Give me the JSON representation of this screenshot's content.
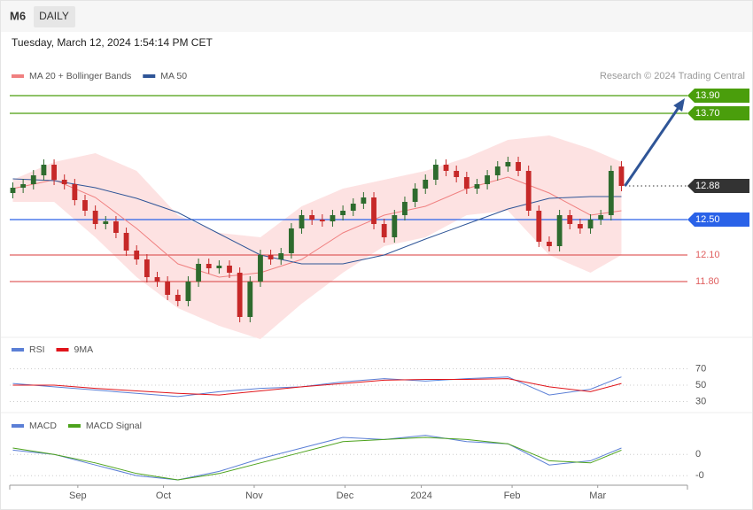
{
  "header": {
    "symbol": "M6",
    "interval": "DAILY",
    "timestamp": "Tuesday, March 12, 2024 1:54:14 PM CET"
  },
  "chart_data": [
    {
      "type": "candlestick",
      "credit": "Research © 2024 Trading Central",
      "up_color": "#2e6b2e",
      "down_color": "#c62828",
      "band_color": "#fde2e2",
      "xlim": [
        -0.3,
        65.4
      ],
      "xticks": [
        {
          "value": 6.3,
          "label": "Sep"
        },
        {
          "value": 14.6,
          "label": "Oct"
        },
        {
          "value": 23.4,
          "label": "Nov"
        },
        {
          "value": 32.2,
          "label": "Dec"
        },
        {
          "value": 39.6,
          "label": "2024"
        },
        {
          "value": 48.4,
          "label": "Feb"
        },
        {
          "value": 56.7,
          "label": "Mar"
        }
      ],
      "ylim": [
        11.18,
        14.58
      ],
      "open": [
        12.8,
        12.86,
        12.9,
        13.0,
        13.12,
        12.95,
        12.9,
        12.72,
        12.6,
        12.45,
        12.48,
        12.35,
        12.15,
        12.05,
        11.85,
        11.8,
        11.65,
        11.58,
        11.8,
        12.0,
        11.95,
        11.98,
        11.9,
        11.4,
        11.8,
        12.1,
        12.05,
        12.12,
        12.4,
        12.55,
        12.5,
        12.48,
        12.55,
        12.6,
        12.68,
        12.75,
        12.45,
        12.3,
        12.55,
        12.7,
        12.85,
        12.95,
        13.12,
        13.05,
        12.98,
        12.85,
        12.9,
        13.0,
        13.1,
        13.15,
        13.05,
        12.6,
        12.25,
        12.2,
        12.55,
        12.45,
        12.4,
        12.5,
        12.55,
        13.1
      ],
      "high": [
        12.92,
        12.96,
        13.06,
        13.18,
        13.18,
        13.01,
        12.96,
        12.78,
        12.66,
        12.54,
        12.54,
        12.41,
        12.21,
        12.11,
        11.91,
        11.86,
        11.71,
        11.86,
        12.06,
        12.06,
        12.04,
        12.04,
        11.96,
        11.86,
        12.16,
        12.16,
        12.18,
        12.46,
        12.61,
        12.61,
        12.56,
        12.61,
        12.66,
        12.74,
        12.81,
        12.81,
        12.51,
        12.61,
        12.76,
        12.91,
        13.01,
        13.18,
        13.18,
        13.11,
        13.04,
        12.96,
        13.06,
        13.16,
        13.21,
        13.21,
        13.11,
        12.66,
        12.31,
        12.61,
        12.61,
        12.51,
        12.56,
        12.61,
        13.11,
        13.16
      ],
      "low": [
        12.74,
        12.8,
        12.84,
        12.94,
        12.89,
        12.84,
        12.66,
        12.54,
        12.39,
        12.39,
        12.29,
        12.09,
        11.99,
        11.79,
        11.74,
        11.59,
        11.52,
        11.52,
        11.74,
        11.89,
        11.89,
        11.84,
        11.34,
        11.34,
        11.74,
        11.99,
        11.99,
        12.06,
        12.34,
        12.44,
        12.42,
        12.42,
        12.49,
        12.54,
        12.62,
        12.39,
        12.24,
        12.24,
        12.49,
        12.64,
        12.79,
        12.89,
        12.99,
        12.92,
        12.79,
        12.79,
        12.84,
        12.94,
        13.04,
        12.99,
        12.54,
        12.19,
        12.14,
        12.14,
        12.39,
        12.34,
        12.34,
        12.44,
        12.49,
        12.82
      ],
      "close": [
        12.86,
        12.9,
        13.0,
        13.12,
        12.95,
        12.9,
        12.72,
        12.6,
        12.45,
        12.48,
        12.35,
        12.15,
        12.05,
        11.85,
        11.8,
        11.65,
        11.58,
        11.8,
        12.0,
        11.95,
        11.98,
        11.9,
        11.4,
        11.8,
        12.1,
        12.05,
        12.12,
        12.4,
        12.55,
        12.5,
        12.48,
        12.55,
        12.6,
        12.68,
        12.75,
        12.45,
        12.3,
        12.55,
        12.7,
        12.85,
        12.95,
        13.12,
        13.05,
        12.98,
        12.85,
        12.9,
        13.0,
        13.1,
        13.15,
        13.05,
        12.6,
        12.25,
        12.2,
        12.55,
        12.45,
        12.4,
        12.5,
        12.55,
        13.05,
        12.88
      ],
      "series": [
        {
          "name": "MA 20 + Bollinger Bands",
          "color": "#f08080",
          "x": [
            0,
            4,
            8,
            12,
            16,
            20,
            24,
            28,
            32,
            36,
            40,
            44,
            48,
            52,
            56,
            59
          ],
          "values": [
            12.85,
            12.95,
            12.75,
            12.4,
            12.0,
            11.85,
            11.9,
            12.05,
            12.35,
            12.55,
            12.65,
            12.85,
            12.98,
            12.8,
            12.55,
            12.6
          ],
          "upper": [
            12.95,
            13.15,
            13.25,
            13.05,
            12.55,
            12.35,
            12.3,
            12.65,
            12.85,
            12.95,
            13.05,
            13.2,
            13.4,
            13.45,
            13.3,
            13.15
          ],
          "lower": [
            12.7,
            12.7,
            12.3,
            11.85,
            11.5,
            11.3,
            11.15,
            11.55,
            11.9,
            12.2,
            12.3,
            12.55,
            12.6,
            12.1,
            11.9,
            12.1
          ]
        },
        {
          "name": "MA 50",
          "color": "#2f5597",
          "x": [
            0,
            4,
            8,
            12,
            16,
            20,
            24,
            28,
            32,
            36,
            40,
            44,
            48,
            52,
            56,
            59
          ],
          "values": [
            12.96,
            12.94,
            12.86,
            12.74,
            12.58,
            12.34,
            12.1,
            12.0,
            12.0,
            12.1,
            12.28,
            12.45,
            12.62,
            12.74,
            12.76,
            12.76
          ]
        }
      ],
      "levels": [
        {
          "value": 13.9,
          "label": "13.90",
          "color": "#4a9e0c",
          "line_style": "solid",
          "label_box": true
        },
        {
          "value": 13.7,
          "label": "13.70",
          "color": "#4a9e0c",
          "line_style": "solid",
          "label_box": true
        },
        {
          "value": 12.88,
          "label": "12.88",
          "color": "#333333",
          "line_style": "dotted",
          "label_box": true
        },
        {
          "value": 12.5,
          "label": "12.50",
          "color": "#2a62e8",
          "line_style": "solid",
          "label_box": true
        },
        {
          "value": 12.1,
          "label": "12.10",
          "color": "#e06060",
          "line_style": "solid",
          "label_box": false
        },
        {
          "value": 11.8,
          "label": "11.80",
          "color": "#e06060",
          "line_style": "solid",
          "label_box": false
        }
      ]
    },
    {
      "type": "line",
      "ylim": [
        20.8,
        104
      ],
      "yticks": [
        30,
        50,
        70
      ],
      "series": [
        {
          "name": "RSI",
          "color": "#5b7fd6",
          "x": [
            0,
            4,
            8,
            12,
            16,
            20,
            24,
            28,
            32,
            36,
            40,
            44,
            48,
            52,
            56,
            59
          ],
          "values": [
            52,
            48,
            44,
            40,
            36,
            42,
            46,
            48,
            54,
            58,
            55,
            58,
            60,
            38,
            45,
            60
          ]
        },
        {
          "name": "9MA",
          "color": "#e0141a",
          "x": [
            0,
            4,
            8,
            12,
            16,
            20,
            24,
            28,
            32,
            36,
            40,
            44,
            48,
            52,
            56,
            59
          ],
          "values": [
            50,
            50,
            46,
            43,
            40,
            38,
            43,
            48,
            52,
            56,
            57,
            57,
            58,
            48,
            42,
            52
          ]
        }
      ]
    },
    {
      "type": "line",
      "ylim": [
        -0.145,
        0.18
      ],
      "yticks": [
        0,
        {
          "value": -0.1,
          "label": "-0"
        }
      ],
      "series": [
        {
          "name": "MACD",
          "color": "#5b7fd6",
          "x": [
            0,
            4,
            8,
            12,
            16,
            20,
            24,
            28,
            32,
            36,
            40,
            44,
            48,
            52,
            56,
            59
          ],
          "values": [
            0.02,
            0.0,
            -0.05,
            -0.1,
            -0.12,
            -0.08,
            -0.02,
            0.03,
            0.08,
            0.07,
            0.09,
            0.06,
            0.05,
            -0.05,
            -0.03,
            0.03
          ]
        },
        {
          "name": "MACD Signal",
          "color": "#4ca21b",
          "x": [
            0,
            4,
            8,
            12,
            16,
            20,
            24,
            28,
            32,
            36,
            40,
            44,
            48,
            52,
            56,
            59
          ],
          "values": [
            0.03,
            0.0,
            -0.04,
            -0.09,
            -0.12,
            -0.09,
            -0.04,
            0.01,
            0.06,
            0.07,
            0.08,
            0.07,
            0.05,
            -0.03,
            -0.04,
            0.02
          ]
        }
      ]
    }
  ]
}
